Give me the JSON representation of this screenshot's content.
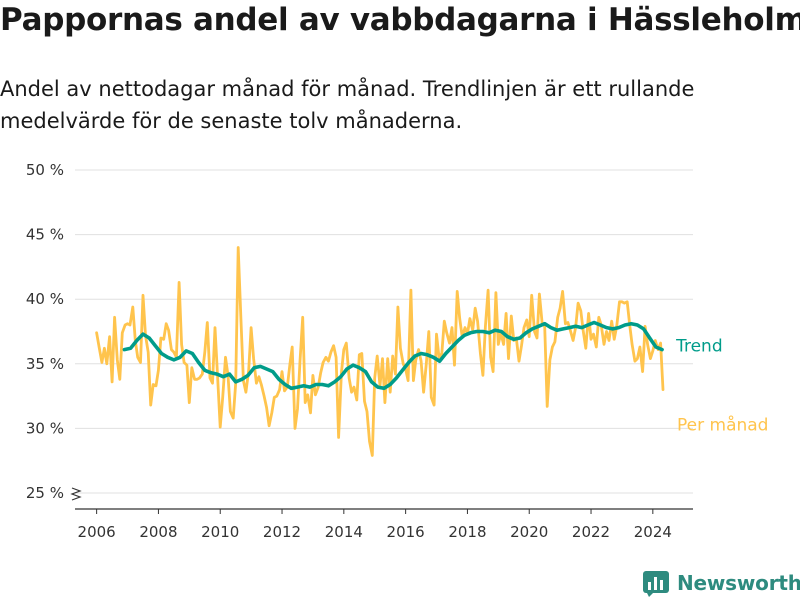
{
  "header": {
    "title": "Pappornas andel av vabbdagarna i Hässleholm",
    "subtitle": "Andel av nettodagar månad för månad. Trendlinjen är ett rullande medelvärde för de senaste tolv månaderna."
  },
  "brand": {
    "name": "Newsworthy",
    "color": "#2e8b7f"
  },
  "colors": {
    "monthly": "#ffc44d",
    "trend": "#009c8a",
    "grid": "#e0e0e0",
    "axis": "#333333"
  },
  "chart_data": {
    "type": "line",
    "title": "Pappornas andel av vabbdagarna i Hässleholm",
    "subtitle": "Andel av nettodagar månad för månad. Trendlinjen är ett rullande medelvärde för de senaste tolv månaderna.",
    "xlabel": "",
    "ylabel": "",
    "x_unit": "year",
    "xlim": [
      2005.3,
      2025.3
    ],
    "ylim": [
      25,
      50
    ],
    "y_axis_break": true,
    "y_ticks": [
      25,
      30,
      35,
      40,
      45,
      50
    ],
    "y_tick_labels": [
      "25 %",
      "30 %",
      "35 %",
      "40 %",
      "45 %",
      "50 %"
    ],
    "x_ticks": [
      2006,
      2008,
      2010,
      2012,
      2014,
      2016,
      2018,
      2020,
      2022,
      2024
    ],
    "x_tick_labels": [
      "2006",
      "2008",
      "2010",
      "2012",
      "2014",
      "2016",
      "2018",
      "2020",
      "2022",
      "2024"
    ],
    "grid": true,
    "legend": "direct labels at right end of lines",
    "series": [
      {
        "name": "Per månad",
        "color": "#ffc44d",
        "x": [
          2006.0,
          2006.08,
          2006.17,
          2006.25,
          2006.33,
          2006.42,
          2006.5,
          2006.58,
          2006.67,
          2006.75,
          2006.83,
          2006.92,
          2007.0,
          2007.08,
          2007.17,
          2007.25,
          2007.33,
          2007.42,
          2007.5,
          2007.58,
          2007.67,
          2007.75,
          2007.83,
          2007.92,
          2008.0,
          2008.08,
          2008.17,
          2008.25,
          2008.33,
          2008.42,
          2008.5,
          2008.58,
          2008.67,
          2008.75,
          2008.83,
          2008.92,
          2009.0,
          2009.08,
          2009.17,
          2009.25,
          2009.33,
          2009.42,
          2009.5,
          2009.58,
          2009.67,
          2009.75,
          2009.83,
          2009.92,
          2010.0,
          2010.08,
          2010.17,
          2010.25,
          2010.33,
          2010.42,
          2010.5,
          2010.58,
          2010.67,
          2010.75,
          2010.83,
          2010.92,
          2011.0,
          2011.08,
          2011.17,
          2011.25,
          2011.33,
          2011.42,
          2011.5,
          2011.58,
          2011.67,
          2011.75,
          2011.83,
          2011.92,
          2012.0,
          2012.08,
          2012.17,
          2012.25,
          2012.33,
          2012.42,
          2012.5,
          2012.58,
          2012.67,
          2012.75,
          2012.83,
          2012.92,
          2013.0,
          2013.08,
          2013.17,
          2013.25,
          2013.33,
          2013.42,
          2013.5,
          2013.58,
          2013.67,
          2013.75,
          2013.83,
          2013.92,
          2014.0,
          2014.08,
          2014.17,
          2014.25,
          2014.33,
          2014.42,
          2014.5,
          2014.58,
          2014.67,
          2014.75,
          2014.83,
          2014.92,
          2015.0,
          2015.08,
          2015.17,
          2015.25,
          2015.33,
          2015.42,
          2015.5,
          2015.58,
          2015.67,
          2015.75,
          2015.83,
          2015.92,
          2016.0,
          2016.08,
          2016.17,
          2016.25,
          2016.33,
          2016.42,
          2016.5,
          2016.58,
          2016.67,
          2016.75,
          2016.83,
          2016.92,
          2017.0,
          2017.08,
          2017.17,
          2017.25,
          2017.33,
          2017.42,
          2017.5,
          2017.58,
          2017.67,
          2017.75,
          2017.83,
          2017.92,
          2018.0,
          2018.08,
          2018.17,
          2018.25,
          2018.33,
          2018.42,
          2018.5,
          2018.58,
          2018.67,
          2018.75,
          2018.83,
          2018.92,
          2019.0,
          2019.08,
          2019.17,
          2019.25,
          2019.33,
          2019.42,
          2019.5,
          2019.58,
          2019.67,
          2019.75,
          2019.83,
          2019.92,
          2020.0,
          2020.08,
          2020.17,
          2020.25,
          2020.33,
          2020.42,
          2020.5,
          2020.58,
          2020.67,
          2020.75,
          2020.83,
          2020.92,
          2021.0,
          2021.08,
          2021.17,
          2021.25,
          2021.33,
          2021.42,
          2021.5,
          2021.58,
          2021.67,
          2021.75,
          2021.83,
          2021.92,
          2022.0,
          2022.08,
          2022.17,
          2022.25,
          2022.33,
          2022.42,
          2022.5,
          2022.58,
          2022.67,
          2022.75,
          2022.83,
          2022.92,
          2023.0,
          2023.08,
          2023.17,
          2023.25,
          2023.33,
          2023.42,
          2023.5,
          2023.58,
          2023.67,
          2023.75,
          2023.83,
          2023.92,
          2024.0,
          2024.08,
          2024.17,
          2024.25,
          2024.33
        ],
        "values": [
          37.4,
          36.3,
          35.1,
          36.2,
          35.0,
          37.1,
          33.6,
          38.6,
          35.3,
          33.8,
          37.4,
          38.0,
          38.1,
          38.0,
          39.4,
          36.8,
          35.5,
          35.1,
          40.3,
          37.2,
          35.9,
          31.8,
          33.4,
          33.3,
          34.5,
          37.0,
          36.9,
          38.1,
          37.6,
          36.1,
          35.9,
          35.5,
          41.3,
          36.5,
          35.1,
          34.9,
          32.0,
          34.7,
          33.8,
          33.8,
          33.9,
          34.2,
          35.9,
          38.2,
          33.9,
          33.5,
          37.8,
          33.7,
          30.1,
          32.4,
          35.5,
          34.1,
          31.3,
          30.8,
          33.5,
          44.0,
          38.5,
          33.7,
          32.8,
          34.5,
          37.8,
          35.4,
          33.5,
          34.0,
          33.4,
          32.5,
          31.6,
          30.2,
          31.2,
          32.4,
          32.5,
          33.0,
          34.4,
          32.9,
          33.2,
          34.9,
          36.3,
          30.0,
          31.5,
          35.2,
          38.6,
          32.0,
          32.6,
          31.2,
          34.1,
          32.6,
          33.2,
          34.3,
          35.1,
          35.5,
          35.2,
          35.9,
          36.4,
          35.5,
          29.3,
          34.3,
          36.1,
          36.6,
          33.9,
          32.8,
          33.2,
          32.2,
          35.7,
          35.8,
          32.1,
          31.3,
          29.0,
          27.9,
          33.9,
          35.6,
          33.3,
          35.4,
          32.0,
          35.4,
          32.8,
          35.6,
          34.2,
          39.4,
          36.2,
          35.0,
          34.6,
          33.7,
          40.7,
          33.7,
          35.3,
          36.1,
          35.2,
          32.8,
          35.0,
          37.5,
          32.4,
          31.8,
          37.3,
          35.5,
          35.8,
          38.3,
          37.4,
          36.6,
          37.8,
          34.9,
          40.6,
          38.5,
          37.1,
          37.8,
          37.3,
          38.5,
          37.6,
          39.3,
          38.3,
          35.8,
          34.1,
          37.9,
          40.7,
          35.5,
          34.4,
          40.5,
          36.5,
          37.4,
          36.5,
          38.9,
          35.4,
          38.7,
          36.8,
          37.0,
          35.2,
          36.4,
          37.8,
          38.4,
          37.1,
          40.3,
          37.5,
          37.0,
          40.4,
          38.1,
          37.9,
          31.7,
          35.3,
          36.3,
          36.7,
          38.6,
          39.3,
          40.6,
          38.1,
          38.2,
          37.6,
          36.8,
          37.8,
          39.7,
          39.1,
          37.5,
          36.2,
          38.9,
          36.9,
          37.3,
          36.3,
          38.6,
          38.0,
          36.5,
          37.5,
          36.8,
          38.3,
          36.9,
          37.9,
          39.8,
          39.8,
          39.7,
          39.8,
          38.0,
          36.5,
          35.2,
          35.4,
          36.3,
          34.4,
          37.9,
          36.5,
          35.4,
          36.0,
          36.8,
          36.1,
          36.6,
          33.0
        ]
      },
      {
        "name": "Trend",
        "color": "#009c8a",
        "x": [
          2006.9,
          2007.1,
          2007.3,
          2007.5,
          2007.7,
          2007.9,
          2008.1,
          2008.3,
          2008.5,
          2008.7,
          2008.9,
          2009.1,
          2009.3,
          2009.5,
          2009.7,
          2009.9,
          2010.1,
          2010.3,
          2010.5,
          2010.7,
          2010.9,
          2011.1,
          2011.3,
          2011.5,
          2011.7,
          2011.9,
          2012.1,
          2012.3,
          2012.5,
          2012.7,
          2012.9,
          2013.1,
          2013.3,
          2013.5,
          2013.7,
          2013.9,
          2014.1,
          2014.3,
          2014.5,
          2014.7,
          2014.9,
          2015.1,
          2015.3,
          2015.5,
          2015.7,
          2015.9,
          2016.1,
          2016.3,
          2016.5,
          2016.7,
          2016.9,
          2017.1,
          2017.3,
          2017.5,
          2017.7,
          2017.9,
          2018.1,
          2018.3,
          2018.5,
          2018.7,
          2018.9,
          2019.1,
          2019.3,
          2019.5,
          2019.7,
          2019.9,
          2020.1,
          2020.3,
          2020.5,
          2020.7,
          2020.9,
          2021.1,
          2021.3,
          2021.5,
          2021.7,
          2021.9,
          2022.1,
          2022.3,
          2022.5,
          2022.7,
          2022.9,
          2023.1,
          2023.3,
          2023.5,
          2023.7,
          2023.9,
          2024.1,
          2024.3
        ],
        "values": [
          36.1,
          36.2,
          36.8,
          37.3,
          37.0,
          36.4,
          35.8,
          35.5,
          35.3,
          35.5,
          36.0,
          35.8,
          35.1,
          34.5,
          34.3,
          34.2,
          34.0,
          34.2,
          33.6,
          33.8,
          34.1,
          34.7,
          34.8,
          34.6,
          34.4,
          33.8,
          33.4,
          33.1,
          33.2,
          33.3,
          33.2,
          33.4,
          33.4,
          33.3,
          33.6,
          34.0,
          34.6,
          34.9,
          34.7,
          34.4,
          33.6,
          33.2,
          33.1,
          33.4,
          33.9,
          34.5,
          35.1,
          35.6,
          35.8,
          35.7,
          35.5,
          35.2,
          35.8,
          36.3,
          36.8,
          37.2,
          37.4,
          37.5,
          37.5,
          37.4,
          37.6,
          37.5,
          37.1,
          36.9,
          37.0,
          37.4,
          37.7,
          37.9,
          38.1,
          37.8,
          37.6,
          37.7,
          37.8,
          37.9,
          37.8,
          38.0,
          38.2,
          38.0,
          37.8,
          37.7,
          37.8,
          38.0,
          38.1,
          38.0,
          37.7,
          37.0,
          36.3,
          36.1
        ]
      }
    ]
  }
}
